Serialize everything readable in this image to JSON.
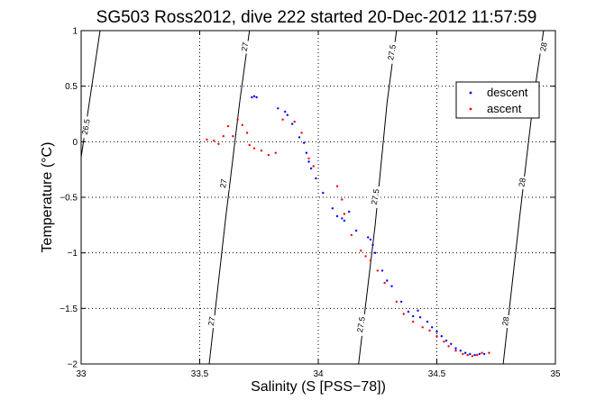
{
  "chart_data": {
    "type": "scatter",
    "title": "SG503 Ross2012, dive 222 started 20-Dec-2012 11:57:59",
    "xlabel": "Salinity (S [PSS−78])",
    "ylabel": "Temperature (°C)",
    "xlim": [
      33,
      35
    ],
    "ylim": [
      -2,
      1
    ],
    "xticks": [
      33,
      33.5,
      34,
      34.5,
      35
    ],
    "xtick_labels": [
      "33",
      "33.5",
      "34",
      "34.5",
      "35"
    ],
    "yticks": [
      -2,
      -1.5,
      -1,
      -0.5,
      0,
      0.5,
      1
    ],
    "ytick_labels": [
      "−2",
      "−1.5",
      "−1",
      "−0.5",
      "0",
      "0.5",
      "1"
    ],
    "grid": true,
    "legend_position": "top-right",
    "series": [
      {
        "name": "descent",
        "color": "#0000ff",
        "points": [
          [
            33.72,
            0.4
          ],
          [
            33.73,
            0.41
          ],
          [
            33.74,
            0.4
          ],
          [
            33.83,
            0.3
          ],
          [
            33.86,
            0.27
          ],
          [
            33.87,
            0.24
          ],
          [
            33.89,
            0.16
          ],
          [
            33.92,
            0.04
          ],
          [
            33.94,
            -0.01
          ],
          [
            33.95,
            -0.1
          ],
          [
            33.96,
            -0.18
          ],
          [
            33.97,
            -0.24
          ],
          [
            33.99,
            -0.33
          ],
          [
            34.02,
            -0.46
          ],
          [
            34.06,
            -0.6
          ],
          [
            34.08,
            -0.67
          ],
          [
            34.1,
            -0.69
          ],
          [
            34.11,
            -0.71
          ],
          [
            34.13,
            -0.63
          ],
          [
            34.16,
            -0.8
          ],
          [
            34.21,
            -0.86
          ],
          [
            34.22,
            -0.88
          ],
          [
            34.23,
            -0.93
          ],
          [
            34.24,
            -1.0
          ],
          [
            34.27,
            -1.16
          ],
          [
            34.29,
            -1.25
          ],
          [
            34.31,
            -1.3
          ],
          [
            34.35,
            -1.44
          ],
          [
            34.38,
            -1.53
          ],
          [
            34.4,
            -1.57
          ],
          [
            34.42,
            -1.52
          ],
          [
            34.43,
            -1.58
          ],
          [
            34.46,
            -1.62
          ],
          [
            34.48,
            -1.67
          ],
          [
            34.5,
            -1.71
          ],
          [
            34.52,
            -1.75
          ],
          [
            34.54,
            -1.79
          ],
          [
            34.56,
            -1.82
          ],
          [
            34.58,
            -1.86
          ],
          [
            34.6,
            -1.88
          ],
          [
            34.62,
            -1.9
          ],
          [
            34.64,
            -1.91
          ],
          [
            34.66,
            -1.92
          ],
          [
            34.68,
            -1.91
          ],
          [
            34.7,
            -1.91
          ]
        ]
      },
      {
        "name": "ascent",
        "color": "#ff0000",
        "points": [
          [
            33.53,
            0.02
          ],
          [
            33.56,
            0.01
          ],
          [
            33.58,
            -0.02
          ],
          [
            33.6,
            0.05
          ],
          [
            33.62,
            0.14
          ],
          [
            33.64,
            0.05
          ],
          [
            33.66,
            0.2
          ],
          [
            33.68,
            0.15
          ],
          [
            33.7,
            0.08
          ],
          [
            33.71,
            -0.03
          ],
          [
            33.73,
            -0.06
          ],
          [
            33.76,
            -0.08
          ],
          [
            33.79,
            -0.12
          ],
          [
            33.82,
            -0.1
          ],
          [
            33.85,
            0.2
          ],
          [
            33.9,
            0.18
          ],
          [
            33.93,
            0.08
          ],
          [
            33.96,
            -0.15
          ],
          [
            33.98,
            -0.22
          ],
          [
            34.08,
            -0.4
          ],
          [
            34.1,
            -0.52
          ],
          [
            34.11,
            -0.65
          ],
          [
            34.14,
            -0.84
          ],
          [
            34.18,
            -0.98
          ],
          [
            34.2,
            -1.03
          ],
          [
            34.22,
            -1.07
          ],
          [
            34.25,
            -1.16
          ],
          [
            34.28,
            -1.27
          ],
          [
            34.33,
            -1.44
          ],
          [
            34.36,
            -1.55
          ],
          [
            34.4,
            -1.62
          ],
          [
            34.44,
            -1.67
          ],
          [
            34.47,
            -1.7
          ],
          [
            34.5,
            -1.75
          ],
          [
            34.53,
            -1.8
          ],
          [
            34.55,
            -1.84
          ],
          [
            34.58,
            -1.88
          ],
          [
            34.61,
            -1.91
          ],
          [
            34.63,
            -1.92
          ],
          [
            34.65,
            -1.93
          ],
          [
            34.67,
            -1.92
          ],
          [
            34.69,
            -1.9
          ],
          [
            34.72,
            -1.9
          ]
        ]
      }
    ],
    "density_contours": [
      {
        "label": "26.5",
        "points": [
          [
            33.0,
            -0.14
          ],
          [
            33.08,
            1.0
          ]
        ]
      },
      {
        "label": "27",
        "points": [
          [
            33.54,
            -2.0
          ],
          [
            33.61,
            -0.68
          ],
          [
            33.67,
            0.38
          ],
          [
            33.71,
            1.0
          ]
        ]
      },
      {
        "label": "27.5",
        "points": [
          [
            34.17,
            -2.0
          ],
          [
            34.24,
            -0.75
          ],
          [
            34.29,
            0.35
          ],
          [
            34.33,
            1.0
          ]
        ]
      },
      {
        "label": "28",
        "points": [
          [
            34.78,
            -2.0
          ],
          [
            34.85,
            -0.66
          ],
          [
            34.91,
            0.42
          ],
          [
            34.95,
            1.0
          ]
        ]
      }
    ],
    "contour_labels": [
      {
        "text": "26.5",
        "x": 33.02,
        "y": 0.13
      },
      {
        "text": "27",
        "x": 33.55,
        "y": -1.62
      },
      {
        "text": "27",
        "x": 33.6,
        "y": -0.38
      },
      {
        "text": "27",
        "x": 33.69,
        "y": 0.85
      },
      {
        "text": "27.5",
        "x": 34.18,
        "y": -1.65
      },
      {
        "text": "27.5",
        "x": 34.24,
        "y": -0.5
      },
      {
        "text": "27.5",
        "x": 34.31,
        "y": 0.8
      },
      {
        "text": "28",
        "x": 34.79,
        "y": -1.62
      },
      {
        "text": "28",
        "x": 34.86,
        "y": -0.37
      },
      {
        "text": "28",
        "x": 34.95,
        "y": 0.85
      }
    ]
  }
}
